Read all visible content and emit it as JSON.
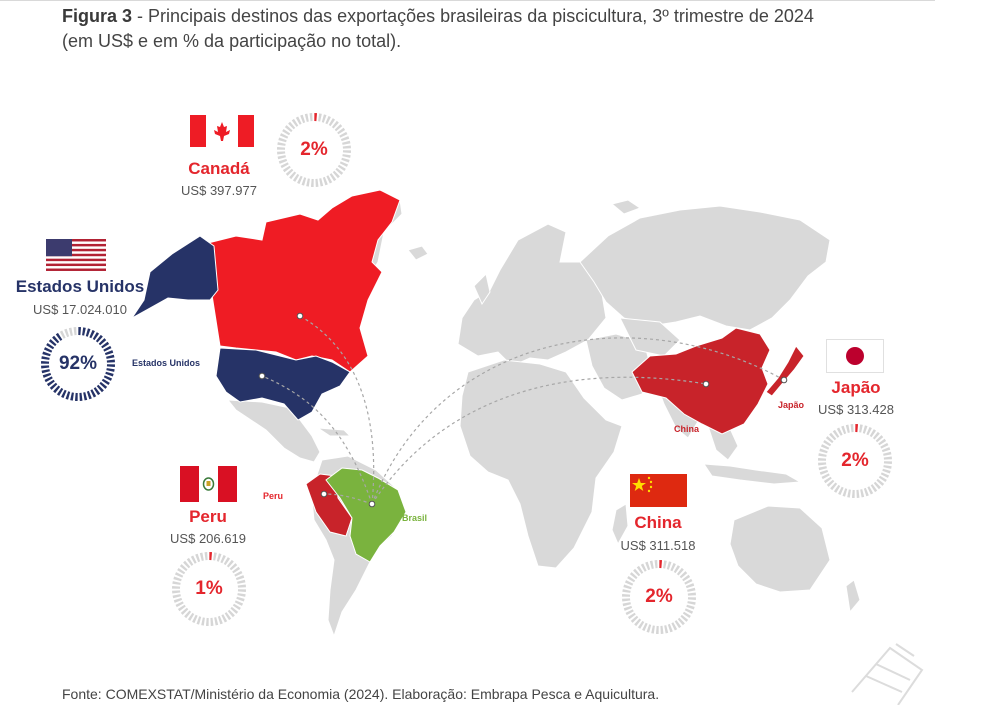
{
  "figure": {
    "label": "Figura 3",
    "caption": " - Principais destinos das exportações brasileiras da piscicultura, 3º trimestre de 2024",
    "caption_line2": "(em US$ e em % da participação no total)."
  },
  "colors": {
    "red": "#e4262d",
    "navy": "#263367",
    "green": "#7ab33e",
    "land": "#d9d9d9",
    "donut_track": "#d6d6d6"
  },
  "destinations": [
    {
      "id": "canada",
      "name": "Canadá",
      "value": "US$ 397.977",
      "share_label": "2%",
      "share": 0.02,
      "color": "#e4262d",
      "flag_icon": "canada-flag-icon"
    },
    {
      "id": "usa",
      "name": "Estados Unidos",
      "value": "US$ 17.024.010",
      "share_label": "92%",
      "share": 0.92,
      "color": "#263367",
      "flag_icon": "usa-flag-icon"
    },
    {
      "id": "peru",
      "name": "Peru",
      "value": "US$ 206.619",
      "share_label": "1%",
      "share": 0.01,
      "color": "#e4262d",
      "flag_icon": "peru-flag-icon"
    },
    {
      "id": "china",
      "name": "China",
      "value": "US$ 311.518",
      "share_label": "2%",
      "share": 0.02,
      "color": "#e4262d",
      "flag_icon": "china-flag-icon"
    },
    {
      "id": "japan",
      "name": "Japão",
      "value": "US$ 313.428",
      "share_label": "2%",
      "share": 0.02,
      "color": "#e4262d",
      "flag_icon": "japan-flag-icon"
    }
  ],
  "map_labels": {
    "usa": "Estados Unidos",
    "peru": "Peru",
    "brasil": "Brasil",
    "china": "China",
    "japao": "Japão"
  },
  "source": "Fonte: COMEXSTAT/Ministério da Economia (2024). Elaboração: Embrapa Pesca e Aquicultura."
}
